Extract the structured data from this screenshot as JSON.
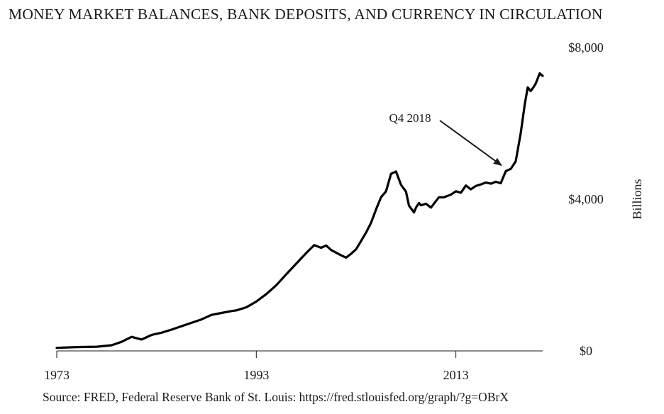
{
  "chart_data": {
    "type": "line",
    "title": "MONEY MARKET BALANCES, BANK DEPOSITS, AND CURRENCY IN CIRCULATION",
    "source": "Source: FRED, Federal Reserve Bank of St. Louis: https://fred.stlouisfed.org/graph/?g=OBrX",
    "ylabel": "Billions",
    "xlabel": "",
    "xlim": [
      1973,
      2021.7
    ],
    "ylim": [
      0,
      8000
    ],
    "x_ticks": [
      1973,
      1993,
      2013
    ],
    "x_tick_labels": [
      "1973",
      "1993",
      "2013"
    ],
    "y_ticks": [
      0,
      4000,
      8000
    ],
    "y_tick_labels": [
      "$0",
      "$4,000",
      "$8,000"
    ],
    "y_axis_position": "right",
    "grid": false,
    "legend": "none",
    "line_color": "#000000",
    "series": [
      {
        "x": [
          1973.0,
          1975.0,
          1977.0,
          1978.5,
          1979.5,
          1980.5,
          1981.5,
          1982.5,
          1983.5,
          1984.5,
          1985.5,
          1986.5,
          1987.5,
          1988.5,
          1989.5,
          1990.5,
          1991.0,
          1992.0,
          1993.0,
          1994.0,
          1995.0,
          1996.0,
          1997.0,
          1998.0,
          1998.8,
          1999.5,
          2000.0,
          2000.5,
          2001.5,
          2002.0,
          2002.5,
          2003.0,
          2003.5,
          2004.0,
          2004.5,
          2005.0,
          2005.5,
          2006.0,
          2006.5,
          2007.0,
          2007.5,
          2008.0,
          2008.3,
          2008.8,
          2009.0,
          2009.3,
          2009.5,
          2010.0,
          2010.5,
          2011.0,
          2011.3,
          2011.8,
          2012.5,
          2013.0,
          2013.5,
          2014.0,
          2014.5,
          2015.0,
          2015.5,
          2016.0,
          2016.5,
          2017.0,
          2017.5,
          2018.0,
          2018.5,
          2019.0,
          2019.5,
          2019.9,
          2020.2,
          2020.5,
          2020.8,
          2021.0,
          2021.4,
          2021.7
        ],
        "y": [
          80,
          100,
          110,
          150,
          240,
          370,
          300,
          420,
          480,
          560,
          650,
          740,
          830,
          950,
          1000,
          1050,
          1070,
          1150,
          1300,
          1500,
          1730,
          2020,
          2300,
          2580,
          2790,
          2720,
          2780,
          2660,
          2520,
          2460,
          2560,
          2680,
          2900,
          3120,
          3380,
          3730,
          4050,
          4210,
          4670,
          4730,
          4380,
          4200,
          3830,
          3650,
          3780,
          3900,
          3840,
          3880,
          3780,
          3950,
          4050,
          4050,
          4120,
          4210,
          4170,
          4360,
          4260,
          4350,
          4390,
          4440,
          4410,
          4460,
          4420,
          4740,
          4800,
          5000,
          5750,
          6500,
          6950,
          6850,
          6960,
          7050,
          7320,
          7250
        ]
      }
    ],
    "annotations": [
      {
        "text": "Q4 2018",
        "x": 2018.0,
        "y": 4780
      }
    ]
  }
}
